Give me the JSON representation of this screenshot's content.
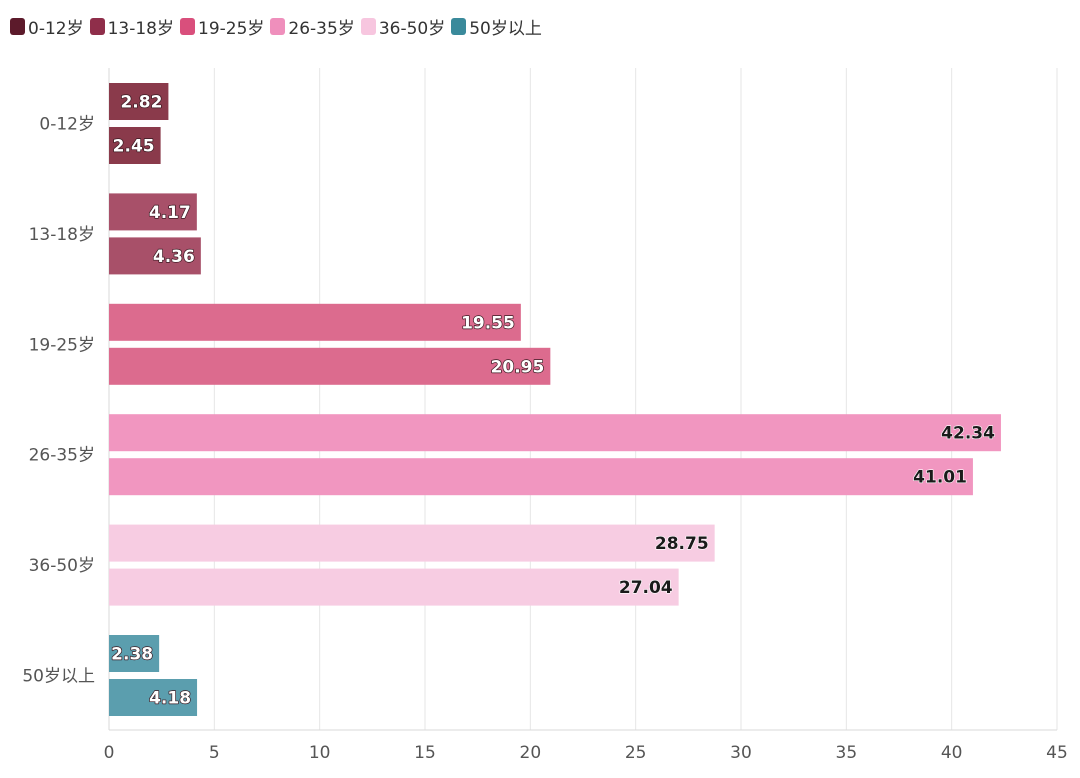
{
  "chart_data": {
    "type": "bar",
    "orientation": "horizontal",
    "categories": [
      "0-12岁",
      "13-18岁",
      "19-25岁",
      "26-35岁",
      "36-50岁",
      "50岁以上"
    ],
    "colors": [
      "#8a3a4b",
      "#a85069",
      "#dc6b8e",
      "#f196c0",
      "#f7cce2",
      "#5b9eae"
    ],
    "series": [
      {
        "values": [
          2.82,
          4.17,
          19.55,
          42.34,
          28.75,
          2.38
        ]
      },
      {
        "values": [
          2.45,
          4.36,
          20.95,
          41.01,
          27.04,
          4.18
        ]
      }
    ],
    "legend": {
      "position": "top-left",
      "items": [
        {
          "label": "0-12岁",
          "color": "#5c1a2b"
        },
        {
          "label": "13-18岁",
          "color": "#8f2e4a"
        },
        {
          "label": "19-25岁",
          "color": "#d94f7c"
        },
        {
          "label": "26-35岁",
          "color": "#ef8fbc"
        },
        {
          "label": "36-50岁",
          "color": "#f7c6df"
        },
        {
          "label": "50岁以上",
          "color": "#3a8a9b"
        }
      ]
    },
    "xlim": [
      0,
      45
    ],
    "xticks": [
      0,
      5,
      10,
      15,
      20,
      25,
      30,
      35,
      40,
      45
    ],
    "grid": true,
    "title": "",
    "xlabel": "",
    "ylabel": ""
  }
}
